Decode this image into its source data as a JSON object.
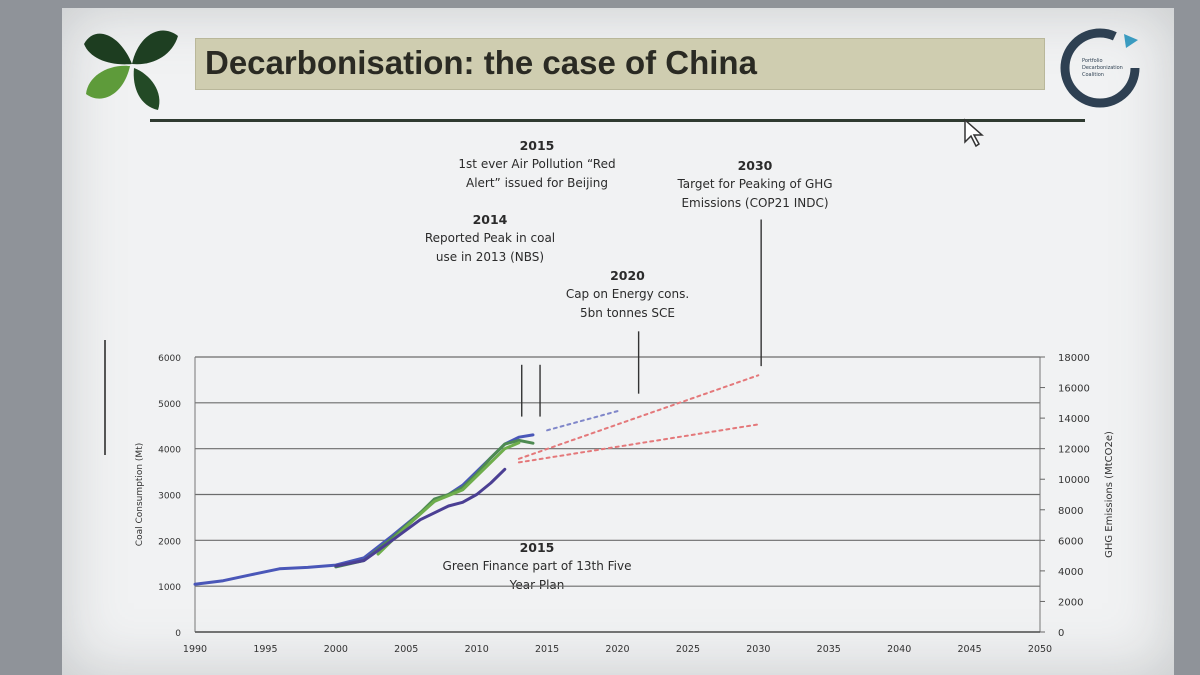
{
  "slide": {
    "title": "Decarbonisation: the case of China",
    "logo_right_text": [
      "Portfolio",
      "Decarbonization",
      "Coalition"
    ]
  },
  "annotations": [
    {
      "year": "2015",
      "lines": [
        "1st ever Air Pollution “Red",
        "Alert” issued for Beijing"
      ]
    },
    {
      "year": "2014",
      "lines": [
        "Reported Peak in coal",
        "use in 2013 (NBS)"
      ]
    },
    {
      "year": "2030",
      "lines": [
        "Target for Peaking of GHG",
        "Emissions (COP21 INDC)"
      ]
    },
    {
      "year": "2020",
      "lines": [
        "Cap on Energy cons.",
        "5bn tonnes SCE"
      ]
    },
    {
      "year": "2015",
      "lines": [
        "Green Finance part of 13th Five",
        "Year Plan"
      ]
    }
  ],
  "chart_data": {
    "type": "line",
    "ylabel": "Coal Consumption (Mt)",
    "y2label": "GHG Emissions (MtCO2e)",
    "xlim": [
      1990,
      2050
    ],
    "ylim": [
      0,
      6000
    ],
    "y2lim": [
      0,
      18000
    ],
    "x_ticks": [
      1990,
      1995,
      2000,
      2005,
      2010,
      2015,
      2020,
      2025,
      2030,
      2035,
      2040,
      2045,
      2050
    ],
    "y_ticks": [
      0,
      1000,
      2000,
      3000,
      4000,
      5000,
      6000
    ],
    "y2_ticks": [
      0,
      2000,
      4000,
      6000,
      8000,
      10000,
      12000,
      14000,
      16000,
      18000
    ],
    "grid": true,
    "series": [
      {
        "color": "#4a57b8",
        "style": "solid",
        "points": [
          [
            1990,
            1040
          ],
          [
            1992,
            1120
          ],
          [
            1994,
            1250
          ],
          [
            1996,
            1380
          ],
          [
            1998,
            1410
          ],
          [
            2000,
            1460
          ],
          [
            2002,
            1620
          ],
          [
            2004,
            2100
          ],
          [
            2006,
            2600
          ],
          [
            2007,
            2850
          ],
          [
            2008,
            3000
          ],
          [
            2009,
            3200
          ],
          [
            2010,
            3500
          ],
          [
            2011,
            3800
          ],
          [
            2012,
            4100
          ],
          [
            2013,
            4250
          ],
          [
            2014,
            4300
          ]
        ]
      },
      {
        "color": "#4e8a52",
        "style": "solid",
        "points": [
          [
            2000,
            1420
          ],
          [
            2002,
            1560
          ],
          [
            2004,
            2050
          ],
          [
            2006,
            2600
          ],
          [
            2007,
            2900
          ],
          [
            2008,
            3000
          ],
          [
            2009,
            3150
          ],
          [
            2010,
            3450
          ],
          [
            2011,
            3800
          ],
          [
            2012,
            4100
          ],
          [
            2013,
            4180
          ],
          [
            2014,
            4120
          ]
        ]
      },
      {
        "color": "#6fae4c",
        "style": "solid",
        "points": [
          [
            2003,
            1700
          ],
          [
            2005,
            2300
          ],
          [
            2007,
            2850
          ],
          [
            2009,
            3100
          ],
          [
            2011,
            3700
          ],
          [
            2012,
            4000
          ],
          [
            2013,
            4130
          ]
        ]
      },
      {
        "color": "#4b3f93",
        "style": "solid",
        "points": [
          [
            2000,
            1440
          ],
          [
            2002,
            1560
          ],
          [
            2004,
            2000
          ],
          [
            2006,
            2450
          ],
          [
            2008,
            2750
          ],
          [
            2009,
            2830
          ],
          [
            2010,
            3000
          ],
          [
            2011,
            3250
          ],
          [
            2012,
            3550
          ]
        ]
      },
      {
        "color": "#7f86c9",
        "style": "dashed",
        "points": [
          [
            2015,
            4400
          ],
          [
            2020,
            4820
          ]
        ]
      },
      {
        "color": "#e4787a",
        "style": "dashed",
        "points": [
          [
            2013,
            3780
          ],
          [
            2030,
            5600
          ]
        ]
      },
      {
        "color": "#e4787a",
        "style": "dashed",
        "points": [
          [
            2013,
            3700
          ],
          [
            2030,
            4530
          ]
        ]
      }
    ],
    "markers": [
      {
        "x": 2013.2,
        "y_top": 5830,
        "y_bottom": 4700
      },
      {
        "x": 2014.5,
        "y_top": 5830,
        "y_bottom": 4700
      },
      {
        "x": 2021.5,
        "y_top": 6560,
        "y_bottom": 5200
      },
      {
        "x": 2030.2,
        "y_top": 9000,
        "y_bottom": 5800
      }
    ]
  }
}
